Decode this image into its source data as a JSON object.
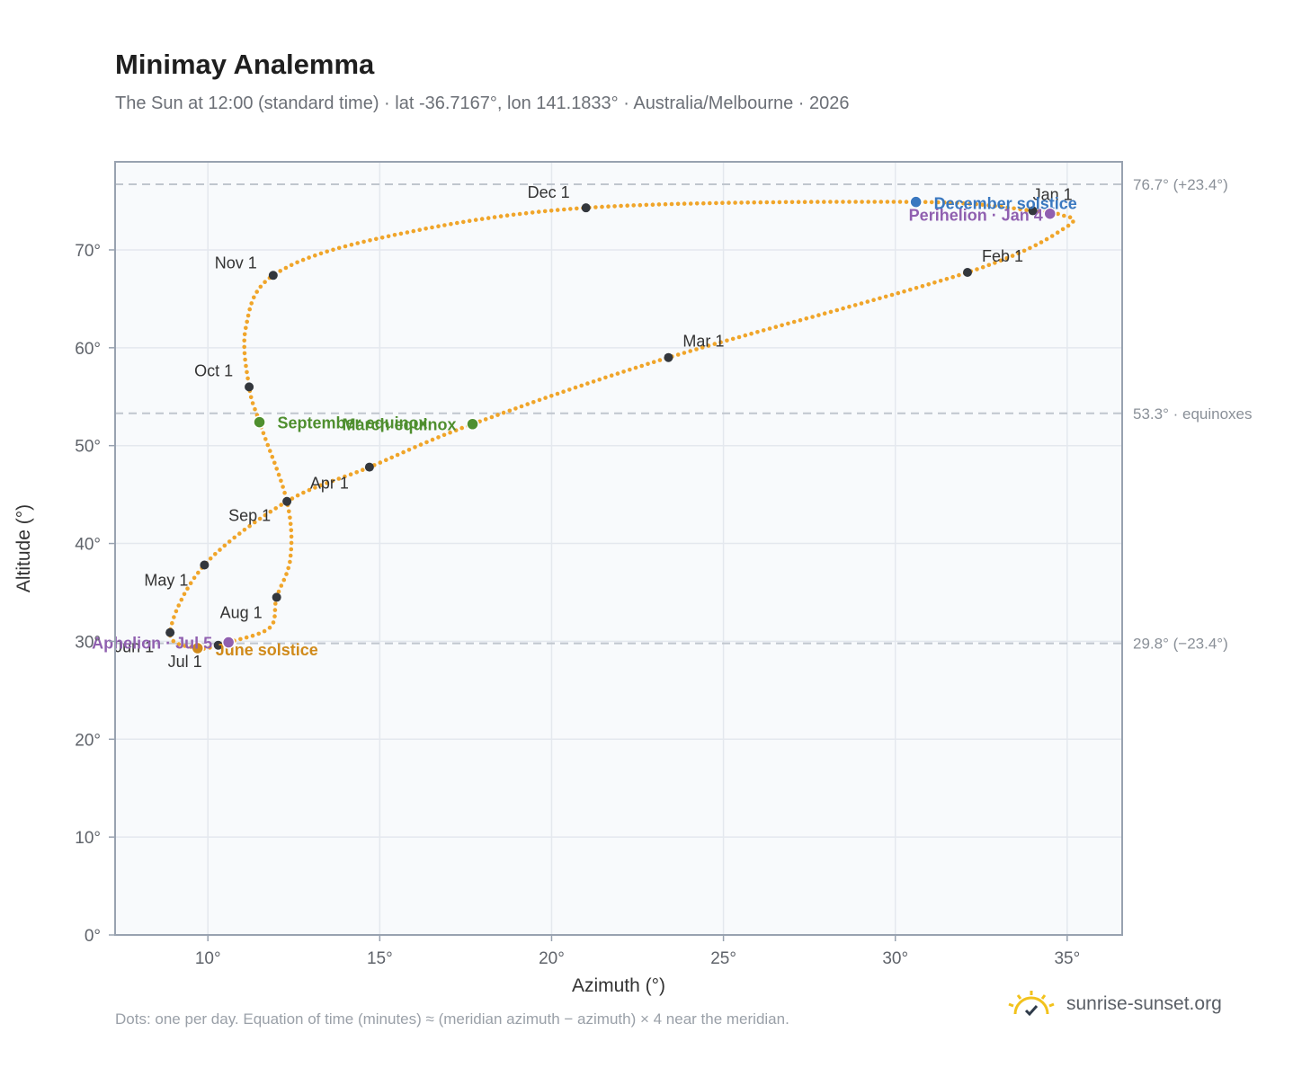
{
  "header": {
    "title": "Minimay Analemma",
    "subtitle": "The Sun at 12:00 (standard time) · lat -36.7167°, lon 141.1833° · Australia/Melbourne · 2026"
  },
  "footer": {
    "note": "Dots: one per day. Equation of time (minutes) ≈ (meridian azimuth − azimuth) × 4 near the meridian.",
    "brand": "sunrise-sunset.org",
    "brand_icon": "sun-logo-icon"
  },
  "colors": {
    "curve": "#f0a52a",
    "month_dot": "#33373d",
    "equinox": "#4f8f2f",
    "december_solstice": "#3a78c0",
    "june_solstice": "#d08a1a",
    "apsis": "#9060b0",
    "plot_bg": "#f8fafc",
    "grid": "#e4e8ee",
    "frame": "#98a2b0",
    "ref_line": "#c0c6ce"
  },
  "chart_data": {
    "type": "scatter",
    "title": "Minimay Analemma",
    "xlabel": "Azimuth (°)",
    "ylabel": "Altitude (°)",
    "xlim": [
      7.3,
      36.6
    ],
    "ylim": [
      0,
      79
    ],
    "xticks": [
      10,
      15,
      20,
      25,
      30,
      35
    ],
    "xtick_labels": [
      "10°",
      "15°",
      "20°",
      "25°",
      "30°",
      "35°"
    ],
    "yticks": [
      0,
      10,
      20,
      30,
      40,
      50,
      60,
      70
    ],
    "ytick_labels": [
      "0°",
      "10°",
      "20°",
      "30°",
      "40°",
      "50°",
      "60°",
      "70°"
    ],
    "grid": true,
    "reference_lines": [
      {
        "y": 76.7,
        "label": "76.7° (+23.4°)"
      },
      {
        "y": 53.3,
        "label": "53.3° · equinoxes"
      },
      {
        "y": 29.8,
        "label": "29.8° (−23.4°)"
      }
    ],
    "month_markers": [
      {
        "label": "Jan 1",
        "az": 34.0,
        "alt": 74.0
      },
      {
        "label": "Feb 1",
        "az": 32.1,
        "alt": 67.7
      },
      {
        "label": "Mar 1",
        "az": 23.4,
        "alt": 59.0
      },
      {
        "label": "Apr 1",
        "az": 14.7,
        "alt": 47.8
      },
      {
        "label": "May 1",
        "az": 9.9,
        "alt": 37.8
      },
      {
        "label": "Jun 1",
        "az": 8.9,
        "alt": 30.9
      },
      {
        "label": "Jul 1",
        "az": 10.3,
        "alt": 29.6
      },
      {
        "label": "Aug 1",
        "az": 12.0,
        "alt": 34.5
      },
      {
        "label": "Sep 1",
        "az": 12.3,
        "alt": 44.3
      },
      {
        "label": "Oct 1",
        "az": 11.2,
        "alt": 56.0
      },
      {
        "label": "Nov 1",
        "az": 11.9,
        "alt": 67.4
      },
      {
        "label": "Dec 1",
        "az": 21.0,
        "alt": 74.3
      }
    ],
    "events": [
      {
        "label": "December solstice",
        "az": 30.6,
        "alt": 74.9,
        "kind": "december_solstice"
      },
      {
        "label": "Perihelion · Jan 4",
        "az": 34.5,
        "alt": 73.7,
        "kind": "apsis"
      },
      {
        "label": "March equinox",
        "az": 17.7,
        "alt": 52.2,
        "kind": "equinox"
      },
      {
        "label": "September equinox",
        "az": 11.5,
        "alt": 52.4,
        "kind": "equinox"
      },
      {
        "label": "June solstice",
        "az": 9.7,
        "alt": 29.3,
        "kind": "june_solstice"
      },
      {
        "label": "Aphelion · Jul 5",
        "az": 10.6,
        "alt": 29.9,
        "kind": "apsis"
      }
    ],
    "path_keypoints": [
      {
        "az": 34.0,
        "alt": 74.0
      },
      {
        "az": 34.8,
        "alt": 73.6
      },
      {
        "az": 35.0,
        "alt": 72.4
      },
      {
        "az": 32.1,
        "alt": 67.7
      },
      {
        "az": 23.4,
        "alt": 59.0
      },
      {
        "az": 17.7,
        "alt": 52.2
      },
      {
        "az": 14.7,
        "alt": 47.8
      },
      {
        "az": 12.3,
        "alt": 44.3
      },
      {
        "az": 9.9,
        "alt": 37.8
      },
      {
        "az": 8.9,
        "alt": 30.9
      },
      {
        "az": 9.7,
        "alt": 29.3
      },
      {
        "az": 10.3,
        "alt": 29.6
      },
      {
        "az": 10.6,
        "alt": 29.9
      },
      {
        "az": 11.8,
        "alt": 31.4
      },
      {
        "az": 12.0,
        "alt": 34.5
      },
      {
        "az": 12.4,
        "alt": 38.5
      },
      {
        "az": 12.3,
        "alt": 44.3
      },
      {
        "az": 11.5,
        "alt": 52.4
      },
      {
        "az": 11.2,
        "alt": 56.0
      },
      {
        "az": 11.1,
        "alt": 62.0
      },
      {
        "az": 11.9,
        "alt": 67.4
      },
      {
        "az": 15.0,
        "alt": 71.2
      },
      {
        "az": 21.0,
        "alt": 74.3
      },
      {
        "az": 30.6,
        "alt": 74.9
      },
      {
        "az": 34.0,
        "alt": 74.0
      }
    ]
  }
}
